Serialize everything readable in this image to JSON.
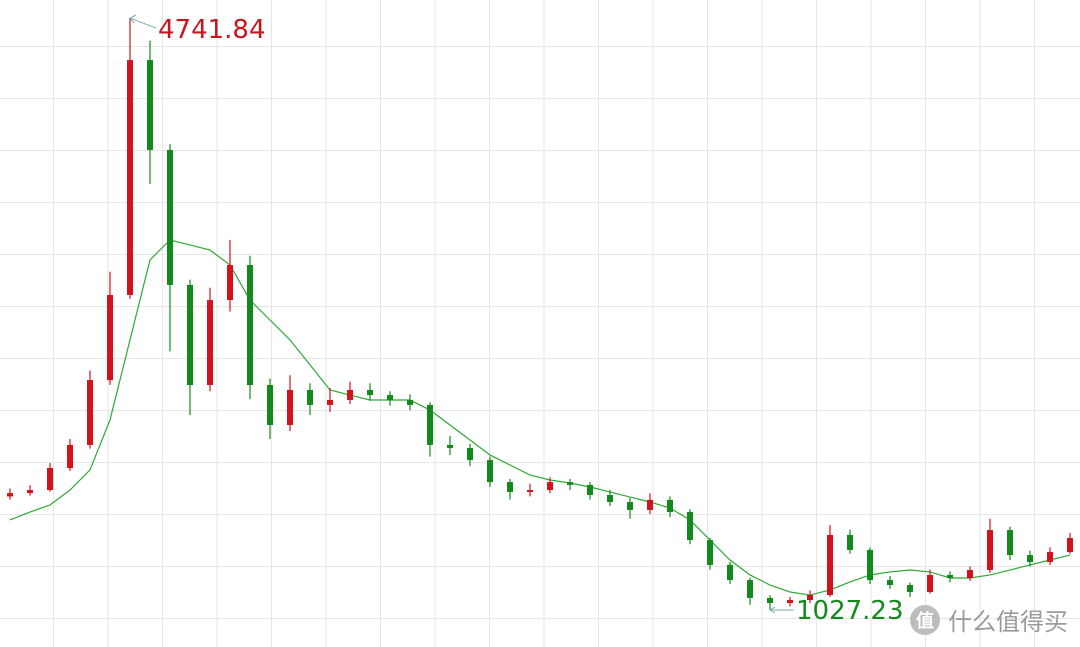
{
  "chart_data": {
    "type": "candlestick",
    "open": [
      1740,
      1761,
      1780,
      1918,
      2063,
      2470,
      3004,
      4478,
      3914,
      3067,
      2439,
      2972,
      3192,
      2439,
      2188,
      2408,
      2314,
      2345,
      2408,
      2376,
      2345,
      2314,
      2063,
      2044,
      1968,
      1830,
      1768,
      1780,
      1830,
      1812,
      1749,
      1705,
      1655,
      1718,
      1642,
      1466,
      1310,
      1215,
      1103,
      1071,
      1090,
      1121,
      1498,
      1404,
      1215,
      1184,
      1140,
      1247,
      1228,
      1278,
      1529,
      1372,
      1328,
      1391
    ],
    "high": [
      1790,
      1810,
      1950,
      2100,
      2530,
      3150,
      4741.84,
      4600,
      3950,
      3100,
      3050,
      3350,
      3250,
      2480,
      2500,
      2450,
      2420,
      2460,
      2450,
      2400,
      2380,
      2330,
      2120,
      2070,
      1990,
      1850,
      1820,
      1860,
      1850,
      1830,
      1780,
      1730,
      1760,
      1740,
      1660,
      1480,
      1330,
      1230,
      1120,
      1110,
      1150,
      1560,
      1530,
      1420,
      1240,
      1200,
      1280,
      1270,
      1300,
      1600,
      1550,
      1400,
      1420,
      1510
    ],
    "low": [
      1720,
      1745,
      1770,
      1900,
      2040,
      2440,
      2980,
      3700,
      2650,
      2250,
      2400,
      2900,
      2350,
      2100,
      2150,
      2250,
      2270,
      2320,
      2340,
      2310,
      2280,
      1990,
      2000,
      1930,
      1800,
      1720,
      1740,
      1760,
      1780,
      1720,
      1680,
      1600,
      1630,
      1610,
      1440,
      1280,
      1190,
      1060,
      1027.23,
      1050,
      1070,
      1110,
      1380,
      1190,
      1160,
      1110,
      1130,
      1200,
      1210,
      1260,
      1340,
      1300,
      1310,
      1380
    ],
    "close": [
      1761,
      1780,
      1918,
      2063,
      2470,
      3004,
      4478,
      3914,
      3067,
      2439,
      2972,
      3192,
      2439,
      2188,
      2408,
      2314,
      2345,
      2408,
      2376,
      2345,
      2314,
      2063,
      2044,
      1968,
      1830,
      1768,
      1780,
      1830,
      1812,
      1749,
      1705,
      1655,
      1718,
      1642,
      1466,
      1310,
      1215,
      1103,
      1071,
      1090,
      1121,
      1498,
      1404,
      1215,
      1184,
      1140,
      1247,
      1228,
      1278,
      1529,
      1372,
      1328,
      1391,
      1479
    ],
    "up_color": "#d4121c",
    "down_color": "#138a1c",
    "ma": [
      {
        "color": "#2ea836",
        "values": [
          1592,
          1642,
          1686,
          1780,
          1906,
          2220,
          2722,
          3224,
          3349,
          3318,
          3286,
          3192,
          2972,
          2847,
          2722,
          2565,
          2408,
          2376,
          2345,
          2345,
          2345,
          2282,
          2188,
          2094,
          2000,
          1937,
          1874,
          1843,
          1824,
          1799,
          1768,
          1736,
          1705,
          1667,
          1592,
          1466,
          1341,
          1247,
          1184,
          1140,
          1121,
          1153,
          1203,
          1247,
          1266,
          1278,
          1266,
          1228,
          1228,
          1247,
          1278,
          1310,
          1341,
          1372
        ]
      }
    ],
    "ylim": [
      795,
      4855
    ],
    "grid": true,
    "max_label_color": "#c8161d",
    "min_label_color": "#138a1c"
  },
  "watermark": "什么值得买"
}
